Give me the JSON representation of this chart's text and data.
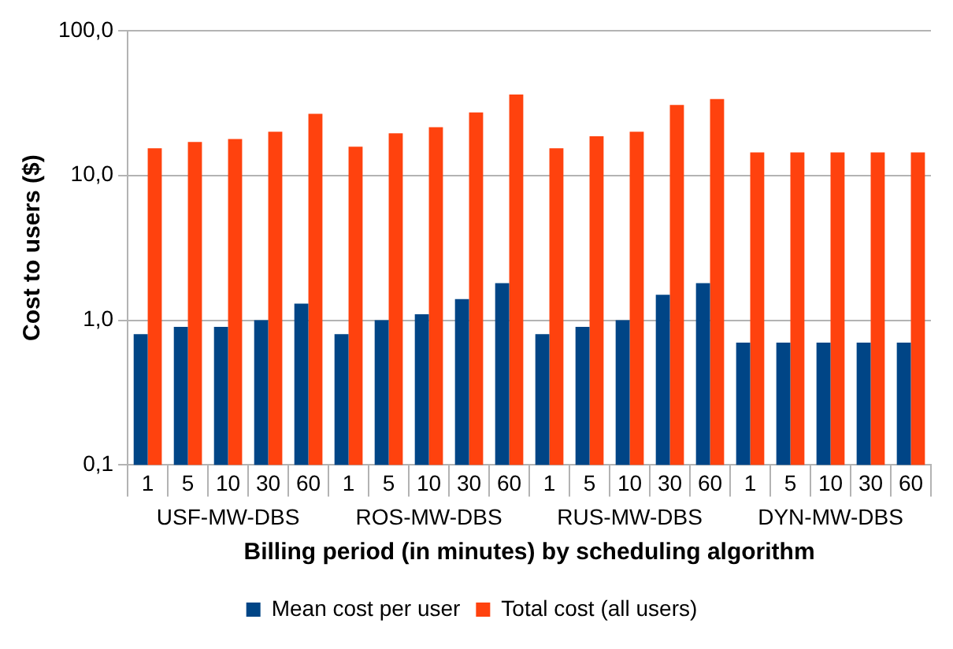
{
  "chart_data": {
    "type": "bar",
    "xlabel": "Billing period (in minutes) by scheduling algorithm",
    "ylabel": "Cost to users ($)",
    "categories": [
      "1",
      "5",
      "10",
      "30",
      "60",
      "1",
      "5",
      "10",
      "30",
      "60",
      "1",
      "5",
      "10",
      "30",
      "60",
      "1",
      "5",
      "10",
      "30",
      "60"
    ],
    "annotations": [
      "USF-MW-DBS",
      "ROS-MW-DBS",
      "RUS-MW-DBS",
      "DYN-MW-DBS"
    ],
    "series": [
      {
        "name": "Mean cost per user",
        "color": "#004586",
        "values": [
          0.8,
          0.9,
          0.9,
          1.0,
          1.3,
          0.8,
          1.0,
          1.1,
          1.4,
          1.8,
          0.8,
          0.9,
          1.0,
          1.5,
          1.8,
          0.7,
          0.7,
          0.7,
          0.7,
          0.7
        ]
      },
      {
        "name": "Total cost (all users)",
        "color": "#ff420e",
        "values": [
          15.4,
          17.0,
          17.8,
          20.0,
          26.6,
          15.8,
          19.5,
          21.5,
          27.2,
          36.2,
          15.4,
          18.6,
          20.0,
          30.6,
          33.7,
          14.4,
          14.4,
          14.4,
          14.4,
          14.4
        ]
      }
    ],
    "log": true,
    "ylim": [
      0.1,
      100
    ],
    "yticks": [
      {
        "value": 0.1,
        "label": "0,1"
      },
      {
        "value": 1,
        "label": "1,0"
      },
      {
        "value": 10,
        "label": "10,0"
      },
      {
        "value": 100,
        "label": "100,0"
      }
    ],
    "grid": "y",
    "legend": "bottom"
  }
}
